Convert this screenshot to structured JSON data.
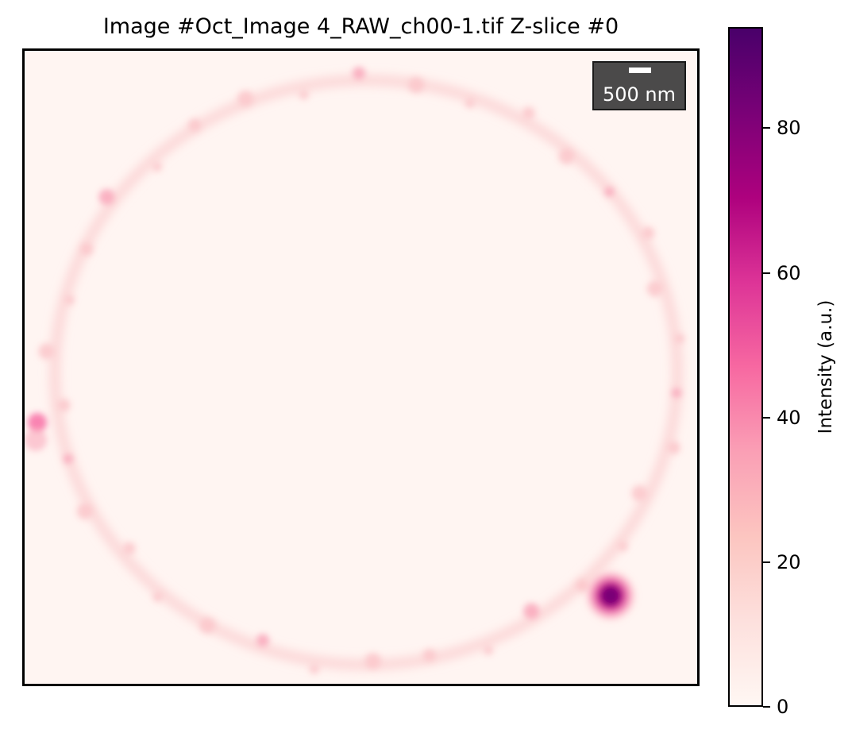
{
  "title": "Image #Oct_Image 4_RAW_ch00-1.tif Z-slice #0",
  "image": {
    "description_icon": "fluorescence-microscopy-ring-image",
    "colormap": "RdPu",
    "scalebar": {
      "label": "500 nm"
    }
  },
  "colorbar": {
    "label": "Intensity (a.u.)",
    "range": [
      0,
      94
    ],
    "ticks": [
      {
        "value": 0,
        "label": "0"
      },
      {
        "value": 20,
        "label": "20"
      },
      {
        "value": 40,
        "label": "40"
      },
      {
        "value": 60,
        "label": "60"
      },
      {
        "value": 80,
        "label": "80"
      }
    ],
    "colors": [
      "#fff7f3",
      "#fde0dd",
      "#fcc5c0",
      "#fa9fb5",
      "#f768a1",
      "#dd3497",
      "#ae017e",
      "#7a0177",
      "#49006a"
    ]
  }
}
